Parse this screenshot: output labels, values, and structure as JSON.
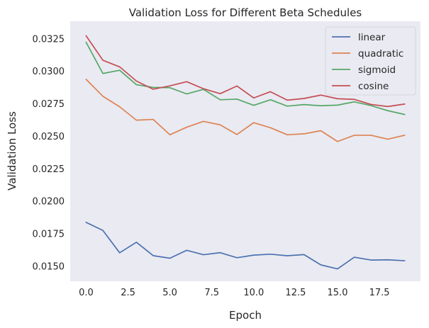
{
  "chart_data": {
    "type": "line",
    "title": "Validation Loss for Different Beta Schedules",
    "xlabel": "Epoch",
    "ylabel": "Validation Loss",
    "xlim": [
      -0.95,
      19.95
    ],
    "ylim": [
      0.01385,
      0.03385
    ],
    "xticks": [
      0.0,
      2.5,
      5.0,
      7.5,
      10.0,
      12.5,
      15.0,
      17.5
    ],
    "xtick_labels": [
      "0.0",
      "2.5",
      "5.0",
      "7.5",
      "10.0",
      "12.5",
      "15.0",
      "17.5"
    ],
    "yticks": [
      0.015,
      0.0175,
      0.02,
      0.0225,
      0.025,
      0.0275,
      0.03,
      0.0325
    ],
    "ytick_labels": [
      "0.0150",
      "0.0175",
      "0.0200",
      "0.0225",
      "0.0250",
      "0.0275",
      "0.0300",
      "0.0325"
    ],
    "grid": true,
    "legend_position": "top-right",
    "x": [
      0,
      1,
      2,
      3,
      4,
      5,
      6,
      7,
      8,
      9,
      10,
      11,
      12,
      13,
      14,
      15,
      16,
      17,
      18,
      19
    ],
    "series": [
      {
        "name": "linear",
        "color": "#4c72b0",
        "values": [
          0.01838,
          0.01776,
          0.01604,
          0.01685,
          0.01582,
          0.01562,
          0.01623,
          0.01589,
          0.01605,
          0.01566,
          0.01586,
          0.01593,
          0.01581,
          0.0159,
          0.01511,
          0.0148,
          0.0157,
          0.01548,
          0.0155,
          0.01543
        ]
      },
      {
        "name": "quadratic",
        "color": "#dd8452",
        "values": [
          0.02938,
          0.02808,
          0.02727,
          0.02624,
          0.0263,
          0.02512,
          0.0257,
          0.02615,
          0.02588,
          0.02514,
          0.02605,
          0.02566,
          0.02512,
          0.02519,
          0.02543,
          0.0246,
          0.02508,
          0.02508,
          0.02478,
          0.02508
        ]
      },
      {
        "name": "sigmoid",
        "color": "#55a868",
        "values": [
          0.03223,
          0.02983,
          0.03008,
          0.02897,
          0.02876,
          0.02874,
          0.02826,
          0.02861,
          0.02781,
          0.02786,
          0.02738,
          0.02781,
          0.02732,
          0.02744,
          0.02735,
          0.0274,
          0.02765,
          0.02736,
          0.02697,
          0.02668
        ]
      },
      {
        "name": "cosine",
        "color": "#c44e52",
        "values": [
          0.03273,
          0.03085,
          0.03034,
          0.02925,
          0.02862,
          0.02888,
          0.0292,
          0.02866,
          0.02828,
          0.02887,
          0.02795,
          0.02843,
          0.02778,
          0.02791,
          0.02817,
          0.02789,
          0.02784,
          0.02745,
          0.02729,
          0.02748
        ]
      }
    ]
  }
}
